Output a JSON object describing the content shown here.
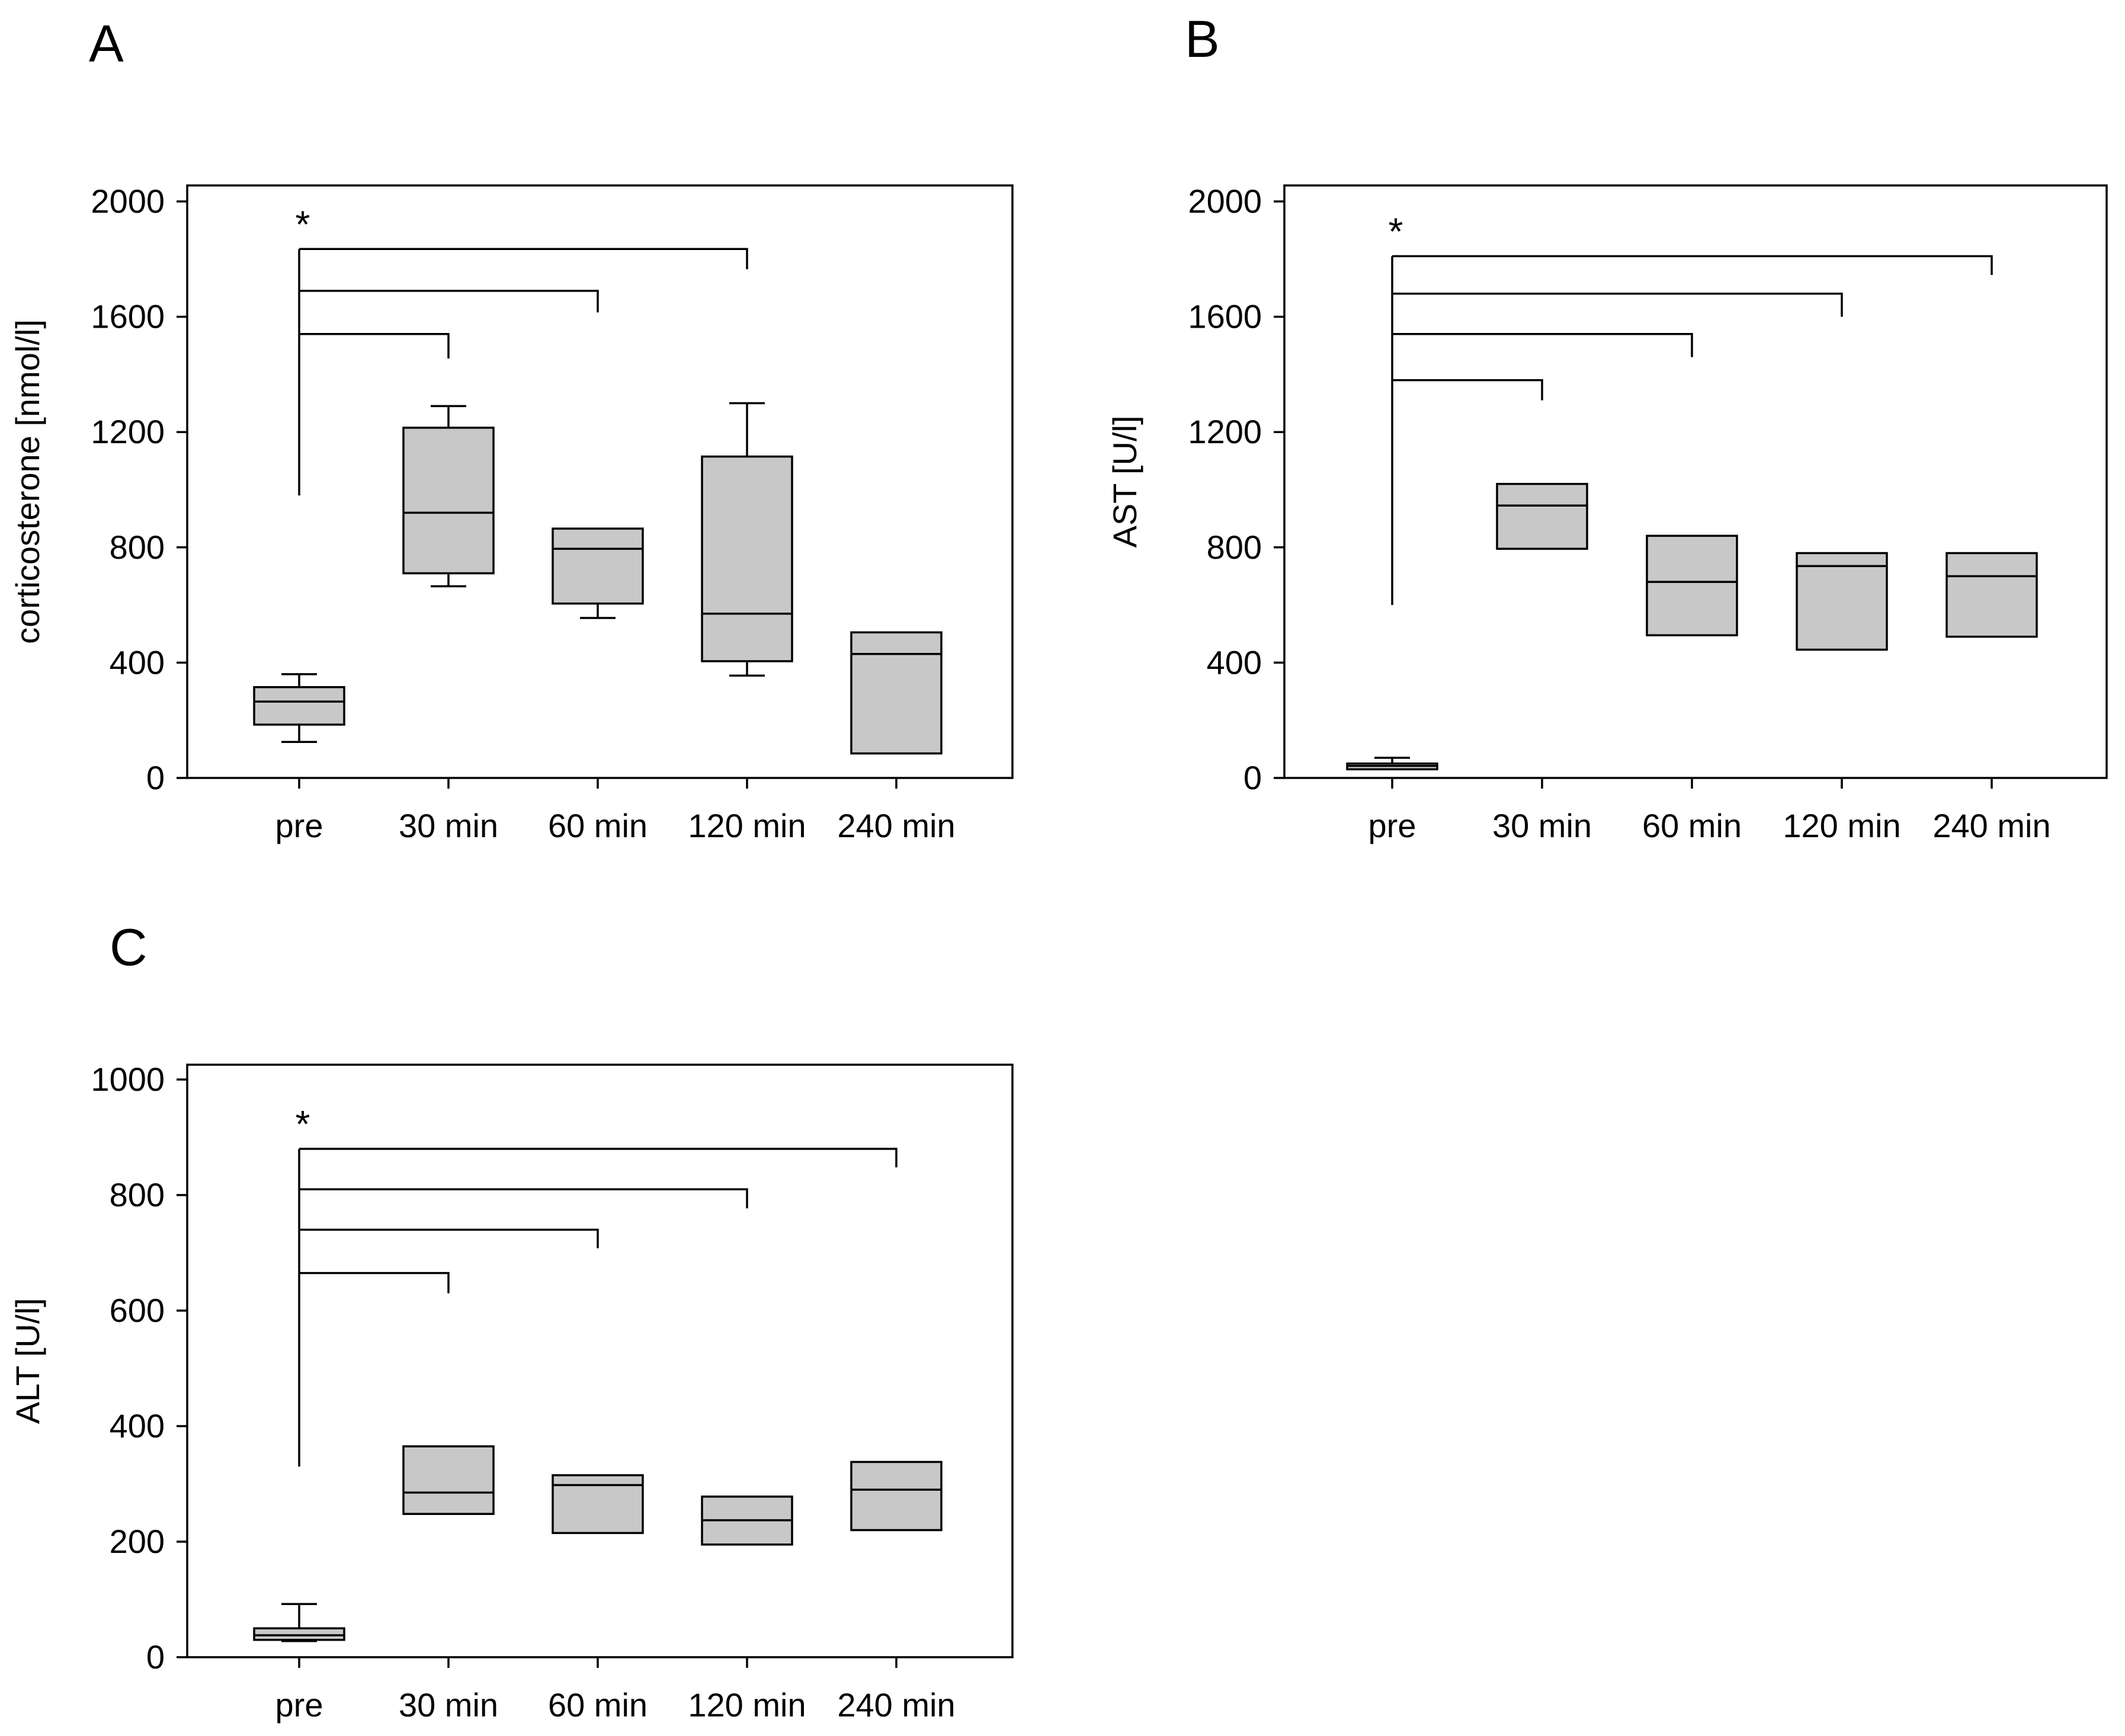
{
  "panels": [
    {
      "letter": "A"
    },
    {
      "letter": "B"
    },
    {
      "letter": "C"
    }
  ],
  "colors": {
    "box_fill": "#c8c8c8",
    "line": "#000000",
    "background": "#ffffff"
  },
  "chart_data": [
    {
      "type": "box",
      "panel": "A",
      "title": "",
      "xlabel": "",
      "ylabel": "corticosterone [nmol/l]",
      "ylim": [
        0,
        2000
      ],
      "yticks": [
        0,
        400,
        800,
        1200,
        1600,
        2000
      ],
      "categories": [
        "pre",
        "30 min",
        "60 min",
        "120 min",
        "240 min"
      ],
      "boxes": [
        {
          "min": 125,
          "q1": 185,
          "median": 265,
          "q3": 315,
          "max": 360
        },
        {
          "min": 665,
          "q1": 710,
          "median": 920,
          "q3": 1215,
          "max": 1290
        },
        {
          "min": 555,
          "q1": 605,
          "median": 795,
          "q3": 865,
          "max": 865
        },
        {
          "min": 355,
          "q1": 405,
          "median": 570,
          "q3": 1115,
          "max": 1300
        },
        {
          "min": 85,
          "q1": 85,
          "median": 430,
          "q3": 505,
          "max": 505
        }
      ],
      "significance": {
        "label": "*",
        "reference": 0,
        "reference_top": 980,
        "comparisons": [
          {
            "to": 1,
            "y": 1540,
            "end": 1455
          },
          {
            "to": 2,
            "y": 1690,
            "end": 1615
          },
          {
            "to": 3,
            "y": 1835,
            "end": 1765
          }
        ]
      }
    },
    {
      "type": "box",
      "panel": "B",
      "title": "",
      "xlabel": "",
      "ylabel": "AST [U/l]",
      "ylim": [
        0,
        2000
      ],
      "yticks": [
        0,
        400,
        800,
        1200,
        1600,
        2000
      ],
      "categories": [
        "pre",
        "30 min",
        "60 min",
        "120 min",
        "240 min"
      ],
      "boxes": [
        {
          "min": 30,
          "q1": 30,
          "median": 42,
          "q3": 50,
          "max": 70
        },
        {
          "min": 795,
          "q1": 795,
          "median": 945,
          "q3": 1020,
          "max": 1020
        },
        {
          "min": 495,
          "q1": 495,
          "median": 680,
          "q3": 840,
          "max": 840
        },
        {
          "min": 445,
          "q1": 445,
          "median": 735,
          "q3": 780,
          "max": 780
        },
        {
          "min": 490,
          "q1": 490,
          "median": 700,
          "q3": 780,
          "max": 780
        }
      ],
      "significance": {
        "label": "*",
        "reference": 0,
        "reference_top": 600,
        "comparisons": [
          {
            "to": 1,
            "y": 1380,
            "end": 1310
          },
          {
            "to": 2,
            "y": 1540,
            "end": 1460
          },
          {
            "to": 3,
            "y": 1680,
            "end": 1600
          },
          {
            "to": 4,
            "y": 1810,
            "end": 1745
          }
        ]
      }
    },
    {
      "type": "box",
      "panel": "C",
      "title": "",
      "xlabel": "",
      "ylabel": "ALT [U/l]",
      "ylim": [
        0,
        1000
      ],
      "yticks": [
        0,
        200,
        400,
        600,
        800,
        1000
      ],
      "categories": [
        "pre",
        "30 min",
        "60 min",
        "120 min",
        "240 min"
      ],
      "boxes": [
        {
          "min": 28,
          "q1": 30,
          "median": 38,
          "q3": 50,
          "max": 92
        },
        {
          "min": 248,
          "q1": 248,
          "median": 285,
          "q3": 365,
          "max": 365
        },
        {
          "min": 215,
          "q1": 215,
          "median": 298,
          "q3": 315,
          "max": 315
        },
        {
          "min": 195,
          "q1": 195,
          "median": 237,
          "q3": 278,
          "max": 278
        },
        {
          "min": 220,
          "q1": 220,
          "median": 290,
          "q3": 338,
          "max": 338
        }
      ],
      "significance": {
        "label": "*",
        "reference": 0,
        "reference_top": 330,
        "comparisons": [
          {
            "to": 1,
            "y": 665,
            "end": 630
          },
          {
            "to": 2,
            "y": 740,
            "end": 708
          },
          {
            "to": 3,
            "y": 810,
            "end": 777
          },
          {
            "to": 4,
            "y": 880,
            "end": 848
          }
        ]
      }
    }
  ]
}
